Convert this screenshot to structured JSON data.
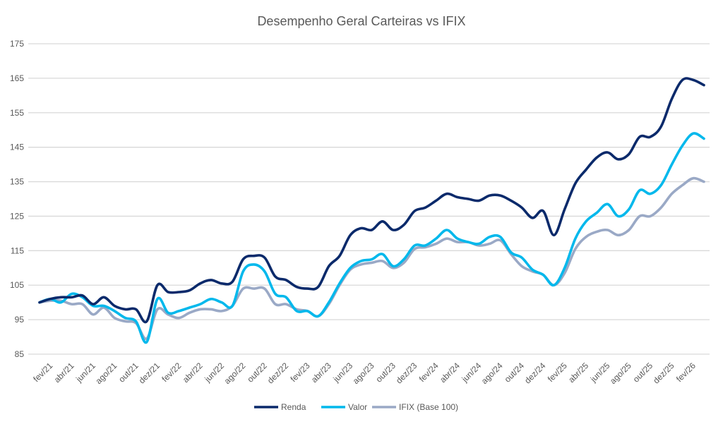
{
  "chart_data": {
    "type": "line",
    "title": "Desempenho Geral Carteiras vs IFIX",
    "xlabel": "",
    "ylabel": "",
    "ylim": [
      85,
      175
    ],
    "yticks": [
      85,
      95,
      105,
      115,
      125,
      135,
      145,
      155,
      165,
      175
    ],
    "grid": true,
    "legend_position": "bottom",
    "x": [
      "jan/21",
      "fev/21",
      "mar/21",
      "abr/21",
      "mai/21",
      "jun/21",
      "jul/21",
      "ago/21",
      "set/21",
      "out/21",
      "nov/21",
      "dez/21",
      "jan/22",
      "fev/22",
      "mar/22",
      "abr/22",
      "mai/22",
      "jun/22",
      "jul/22",
      "ago/22",
      "set/22",
      "out/22",
      "nov/22",
      "dez/22",
      "jan/23",
      "fev/23",
      "mar/23",
      "abr/23",
      "mai/23",
      "jun/23",
      "jul/23",
      "ago/23",
      "set/23",
      "out/23",
      "nov/23",
      "dez/23",
      "jan/24",
      "fev/24",
      "mar/24",
      "abr/24",
      "mai/24",
      "jun/24",
      "jul/24",
      "ago/24",
      "set/24",
      "out/24",
      "nov/24",
      "dez/24",
      "jan/25",
      "fev/25",
      "mar/25",
      "abr/25",
      "mai/25",
      "jun/25",
      "jul/25",
      "ago/25",
      "set/25",
      "out/25",
      "nov/25",
      "dez/25",
      "jan/26",
      "fev/26",
      "mar/26"
    ],
    "xtick_labels": [
      "fev/21",
      "abr/21",
      "jun/21",
      "ago/21",
      "out/21",
      "dez/21",
      "fev/22",
      "abr/22",
      "jun/22",
      "ago/22",
      "out/22",
      "dez/22",
      "fev/23",
      "abr/23",
      "jun/23",
      "ago/23",
      "out/23",
      "dez/23",
      "fev/24",
      "abr/24",
      "jun/24",
      "ago/24",
      "out/24",
      "dez/24",
      "fev/25",
      "abr/25",
      "jun/25",
      "ago/25",
      "out/25",
      "dez/25",
      "fev/26"
    ],
    "series": [
      {
        "name": "Renda",
        "color": "#0B2A6B",
        "values": [
          100,
          101,
          101.5,
          101.5,
          102,
          99.5,
          101.5,
          99,
          98,
          98,
          94.5,
          105,
          103,
          103,
          103.5,
          105.5,
          106.5,
          105.5,
          106,
          112.5,
          113.5,
          113,
          107.5,
          106.5,
          104.5,
          104,
          104.5,
          110.5,
          113.5,
          119.5,
          121.5,
          121,
          123.5,
          121,
          122.5,
          126.5,
          127.5,
          129.5,
          131.5,
          130.5,
          130,
          129.5,
          131,
          131,
          129.5,
          127.5,
          124.5,
          126.5,
          119.5,
          127,
          134.5,
          138.5,
          142,
          143.5,
          141.5,
          143,
          148,
          148,
          151,
          159,
          164.5,
          164.5,
          163
        ]
      },
      {
        "name": "Valor",
        "color": "#00B8EC",
        "values": [
          100,
          101,
          100,
          102.5,
          101.5,
          99,
          99,
          97.5,
          95.5,
          94.5,
          88.5,
          101,
          97,
          97.5,
          98.5,
          99.5,
          101,
          100,
          99,
          109,
          111,
          109,
          102.5,
          101.5,
          97.5,
          97.5,
          96,
          100,
          105.5,
          110,
          112,
          112.5,
          114,
          110.5,
          112.5,
          116.5,
          116.5,
          118.5,
          121,
          118.5,
          117.5,
          117,
          119,
          119,
          114.5,
          113,
          109.5,
          108,
          105,
          110,
          118.5,
          123.5,
          126,
          128.5,
          125,
          127,
          132.5,
          131.5,
          134,
          140,
          145.5,
          149,
          147.5
        ]
      },
      {
        "name": "IFIX (Base 100)",
        "color": "#9AA9C6",
        "values": [
          100,
          100.5,
          100.5,
          99.5,
          99.5,
          96.5,
          98.5,
          95.5,
          94.5,
          94,
          89.5,
          98,
          96.5,
          95.5,
          97,
          98,
          98,
          97.5,
          99,
          104,
          104,
          104,
          99.5,
          99.5,
          98,
          97.5,
          96,
          99.5,
          105,
          109.5,
          111,
          111.5,
          112,
          110,
          111.5,
          115.5,
          116,
          117,
          118.5,
          117.5,
          117.5,
          116.5,
          117,
          118,
          114,
          110.5,
          109,
          108,
          105,
          108.5,
          115.5,
          119,
          120.5,
          121,
          119.5,
          121,
          125,
          125,
          127.5,
          131.5,
          134,
          136,
          135
        ]
      }
    ]
  }
}
